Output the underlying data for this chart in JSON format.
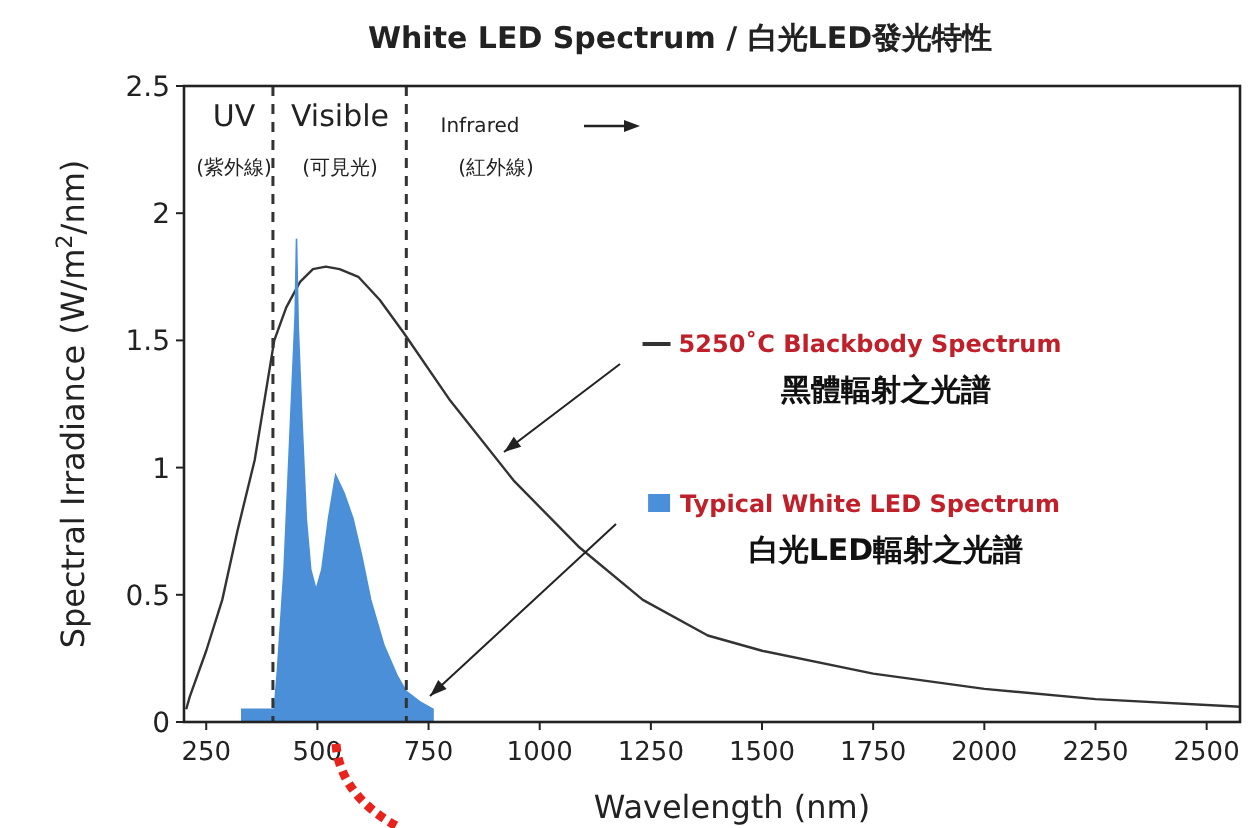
{
  "chart_data": {
    "type": "line",
    "title": "White LED Spectrum / 白光LED發光特性",
    "xlabel": "Wavelength (nm)",
    "ylabel": "Spectral Irradiance (W/m$^{2}$/nm)",
    "xlim": [
      200,
      2575
    ],
    "ylim": [
      0,
      2.5
    ],
    "xticks": [
      250,
      500,
      750,
      1000,
      1250,
      1500,
      1750,
      2000,
      2250,
      2500
    ],
    "yticks": [
      0,
      {
        "value": 0.5,
        "label": "0.5"
      },
      1,
      {
        "value": 1.5,
        "label": "1.5"
      },
      2,
      {
        "value": 2.5,
        "label": "2.5"
      }
    ],
    "ref_lines": [
      {
        "axis": "x",
        "value": 400,
        "line_style": "dashed",
        "color": "#333333"
      },
      {
        "axis": "x",
        "value": 700,
        "line_style": "dashed",
        "color": "#333333"
      }
    ],
    "series": [
      {
        "name": "5250˚C Blackbody Spectrum",
        "color": "#333333",
        "x": [
          205,
          213,
          250,
          286,
          320,
          359,
          403,
          430,
          461,
          490,
          519,
          550,
          592,
          640,
          694,
          796,
          941,
          1087,
          1232,
          1378,
          1500,
          1750,
          2000,
          2250,
          2575
        ],
        "values": [
          0.05,
          0.1,
          0.28,
          0.48,
          0.75,
          1.03,
          1.5,
          1.63,
          1.73,
          1.78,
          1.79,
          1.78,
          1.75,
          1.66,
          1.53,
          1.27,
          0.95,
          0.69,
          0.48,
          0.34,
          0.28,
          0.19,
          0.13,
          0.09,
          0.06
        ]
      },
      {
        "name": "Typical White LED Spectrum",
        "type": "area",
        "color": "#4a8fd8",
        "x": [
          330,
          403,
          410,
          425,
          440,
          450,
          453,
          457,
          465,
          475,
          485,
          497,
          510,
          525,
          541,
          560,
          580,
          600,
          620,
          650,
          680,
          700,
          730,
          760
        ],
        "values": [
          0.05,
          0.05,
          0.2,
          0.6,
          1.2,
          1.6,
          1.9,
          1.55,
          1.2,
          0.8,
          0.6,
          0.52,
          0.6,
          0.8,
          0.97,
          0.9,
          0.8,
          0.65,
          0.48,
          0.3,
          0.18,
          0.12,
          0.08,
          0.05
        ]
      }
    ],
    "annotations": [
      "UV",
      "(紫外線)",
      "Visible",
      "(可見光)",
      "Infrared",
      "(紅外線)",
      "黑體輻射之光譜",
      "白光LED輻射之光譜"
    ],
    "legend": "right",
    "grid": false
  }
}
